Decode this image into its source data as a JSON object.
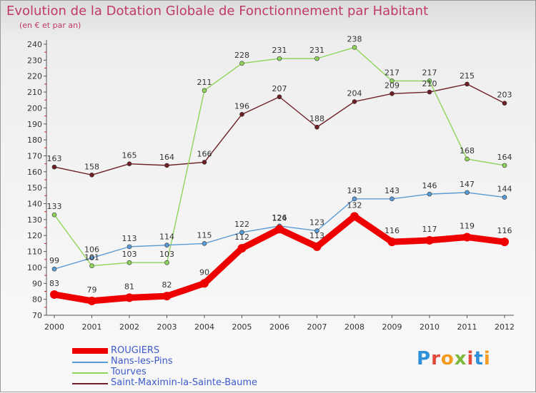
{
  "title": "Evolution de la Dotation Globale de Fonctionnement par Habitant",
  "subtitle": "(en € et par an)",
  "logo": {
    "text": "Proxiti",
    "letter_colors": [
      "#2f8fd8",
      "#e24a3b",
      "#f29b1d",
      "#7ab93a",
      "#e24a3b",
      "#2f8fd8",
      "#f29b1d"
    ]
  },
  "chart_data": {
    "type": "line",
    "x": [
      "2000",
      "2001",
      "2002",
      "2003",
      "2004",
      "2005",
      "2006",
      "2007",
      "2008",
      "2009",
      "2010",
      "2011",
      "2012"
    ],
    "ylim": [
      70,
      240
    ],
    "yticks": [
      70,
      80,
      90,
      100,
      110,
      120,
      130,
      140,
      150,
      160,
      170,
      180,
      190,
      200,
      210,
      220,
      230,
      240
    ],
    "grid": false,
    "legend_position": "bottom-left",
    "series": [
      {
        "name": "Saint-Maximin-la-Sainte-Baume",
        "color": "#6e1f26",
        "values": [
          163,
          158,
          165,
          164,
          166,
          196,
          207,
          188,
          204,
          209,
          210,
          215,
          203
        ]
      },
      {
        "name": "Tourves",
        "color": "#8fd45a",
        "values": [
          133,
          101,
          103,
          103,
          211,
          228,
          231,
          231,
          238,
          217,
          217,
          168,
          164
        ]
      },
      {
        "name": "Nans-les-Pins",
        "color": "#5b9bd5",
        "values": [
          99,
          106,
          113,
          114,
          115,
          122,
          126,
          123,
          143,
          143,
          146,
          147,
          144
        ]
      },
      {
        "name": "ROUGIERS",
        "color": "#ee0000",
        "values": [
          83,
          79,
          81,
          82,
          90,
          112,
          124,
          113,
          132,
          116,
          117,
          119,
          116
        ]
      }
    ],
    "legend_order": [
      "ROUGIERS",
      "Nans-les-Pins",
      "Tourves",
      "Saint-Maximin-la-Sainte-Baume"
    ]
  }
}
